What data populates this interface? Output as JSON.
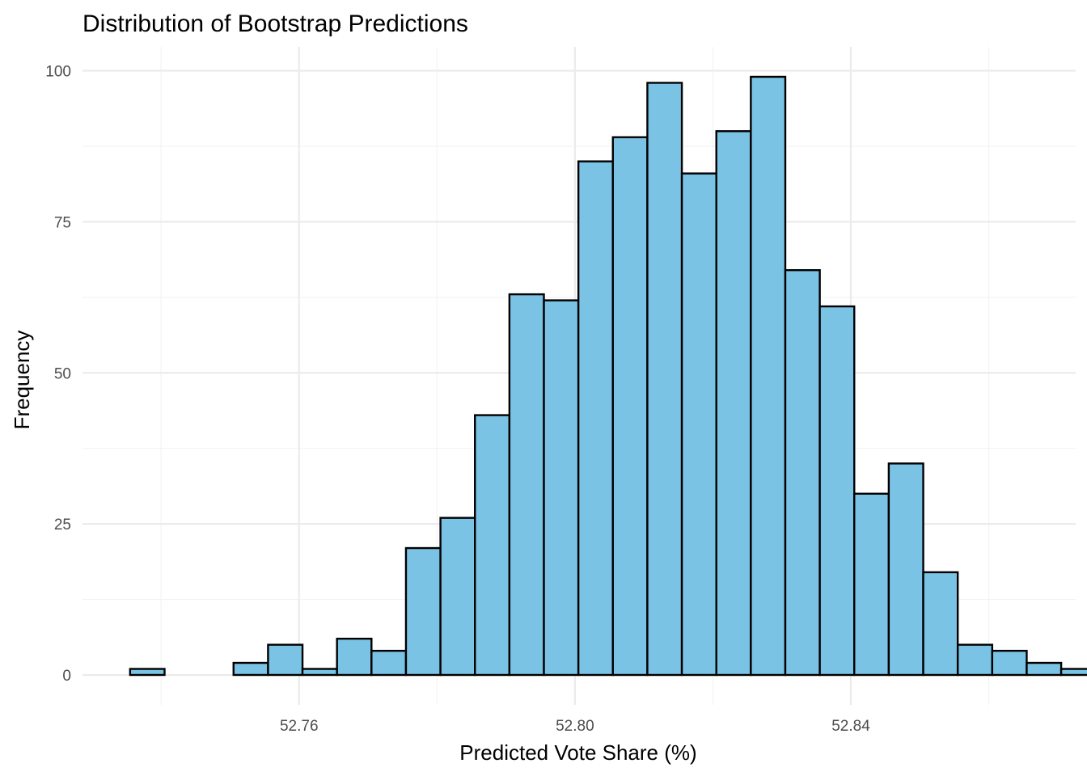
{
  "chart_data": {
    "type": "bar",
    "title": "Distribution of Bootstrap Predictions",
    "xlabel": "Predicted Vote Share (%)",
    "ylabel": "Frequency",
    "xlim": [
      52.7286,
      52.8726
    ],
    "ylim": [
      -4.95,
      103.95
    ],
    "x_ticks": [
      52.76,
      52.8,
      52.84
    ],
    "x_tick_labels": [
      "52.76",
      "52.80",
      "52.84"
    ],
    "y_ticks": [
      0,
      25,
      50,
      75,
      100
    ],
    "y_tick_labels": [
      "0",
      "25",
      "50",
      "75",
      "100"
    ],
    "grid": true,
    "bin_start": 52.7355,
    "bin_width": 0.005,
    "values": [
      1,
      0,
      0,
      2,
      5,
      1,
      6,
      4,
      21,
      26,
      43,
      63,
      62,
      85,
      89,
      98,
      83,
      90,
      99,
      67,
      61,
      30,
      35,
      17,
      5,
      4,
      2,
      1
    ],
    "colors": {
      "fill": "#7AC3E4",
      "stroke": "#000000"
    }
  }
}
